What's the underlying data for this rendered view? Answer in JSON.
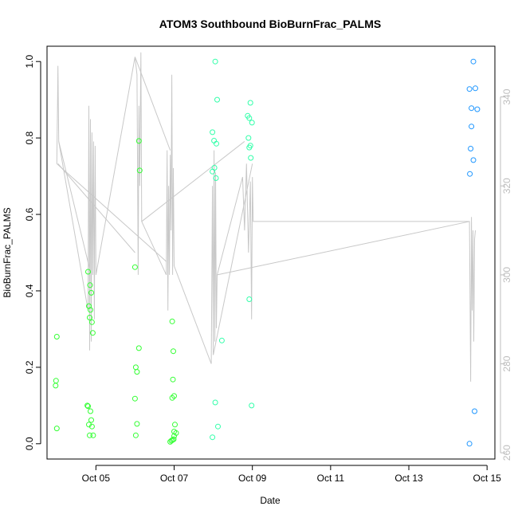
{
  "chart_data": {
    "type": "scatter",
    "title": "ATOM3 Southbound BioBurnFrac_PALMS",
    "xlabel": "Date",
    "ylabel": "BioBurnFrac_PALMS",
    "x_axis": {
      "unit": "day-of-October-2017",
      "range": [
        3.75,
        15.2
      ],
      "ticks": [
        5,
        7,
        9,
        11,
        13,
        15
      ],
      "tick_labels": [
        "Oct 05",
        "Oct 07",
        "Oct 09",
        "Oct 11",
        "Oct 13",
        "Oct 15"
      ]
    },
    "y_left": {
      "range": [
        -0.04,
        1.04
      ],
      "ticks": [
        0.0,
        0.2,
        0.4,
        0.6,
        0.8,
        1.0
      ],
      "tick_labels": [
        "0.0",
        "0.2",
        "0.4",
        "0.6",
        "0.8",
        "1.0"
      ]
    },
    "y_right": {
      "range": [
        258.6,
        351.4
      ],
      "ticks": [
        260,
        280,
        300,
        320,
        340
      ],
      "tick_labels": [
        "260",
        "280",
        "300",
        "320",
        "340"
      ],
      "color": "#bdbdbd"
    },
    "line_series": {
      "axis": "right",
      "color": "#c8c8c8",
      "points": [
        [
          4.0,
          325
        ],
        [
          4.02,
          340
        ],
        [
          4.03,
          347
        ],
        [
          4.05,
          330
        ],
        [
          4.8,
          292
        ],
        [
          4.82,
          338
        ],
        [
          4.84,
          283
        ],
        [
          4.86,
          335
        ],
        [
          4.88,
          285
        ],
        [
          4.9,
          332
        ],
        [
          4.92,
          300
        ],
        [
          4.94,
          330
        ],
        [
          4.96,
          290
        ],
        [
          4.98,
          329
        ],
        [
          5.0,
          300
        ],
        [
          6.0,
          349
        ],
        [
          6.05,
          345
        ],
        [
          6.08,
          300
        ],
        [
          6.1,
          338
        ],
        [
          6.12,
          320
        ],
        [
          6.15,
          350
        ],
        [
          6.17,
          312
        ],
        [
          6.8,
          300
        ],
        [
          6.82,
          328
        ],
        [
          6.84,
          292
        ],
        [
          6.86,
          320
        ],
        [
          6.88,
          300
        ],
        [
          6.9,
          327
        ],
        [
          6.92,
          310
        ],
        [
          6.94,
          345
        ],
        [
          6.96,
          300
        ],
        [
          6.98,
          324
        ],
        [
          7.0,
          302
        ],
        [
          7.95,
          280
        ],
        [
          7.98,
          320
        ],
        [
          8.0,
          282
        ],
        [
          8.02,
          328
        ],
        [
          8.04,
          285
        ],
        [
          8.06,
          323
        ],
        [
          8.08,
          288
        ],
        [
          8.1,
          300
        ],
        [
          8.75,
          322
        ],
        [
          8.8,
          310
        ],
        [
          8.85,
          325
        ],
        [
          8.9,
          305
        ],
        [
          8.95,
          321
        ],
        [
          8.98,
          290
        ],
        [
          9.0,
          322
        ],
        [
          9.02,
          312
        ],
        [
          14.55,
          312
        ],
        [
          14.58,
          276
        ],
        [
          14.6,
          313
        ],
        [
          14.62,
          292
        ],
        [
          14.64,
          310
        ],
        [
          14.66,
          285
        ],
        [
          14.68,
          308
        ],
        [
          14.7,
          310
        ]
      ],
      "connectors": [
        [
          [
            4.05,
            330
          ],
          [
            4.85,
            301
          ]
        ],
        [
          [
            4.03,
            325
          ],
          [
            6.0,
            305
          ]
        ],
        [
          [
            4.0,
            325
          ],
          [
            6.8,
            303
          ]
        ],
        [
          [
            6.0,
            349
          ],
          [
            6.9,
            328
          ]
        ],
        [
          [
            6.17,
            312
          ],
          [
            8.8,
            330
          ]
        ],
        [
          [
            8.1,
            300
          ],
          [
            14.55,
            312
          ]
        ],
        [
          [
            8.0,
            282
          ],
          [
            9.0,
            325
          ]
        ]
      ]
    },
    "series": [
      {
        "group": "Oct04-Oct07",
        "color": "#33ff33",
        "points": [
          [
            4.0,
            0.28
          ],
          [
            3.98,
            0.165
          ],
          [
            3.97,
            0.152
          ],
          [
            4.0,
            0.04
          ],
          [
            4.8,
            0.45
          ],
          [
            4.85,
            0.415
          ],
          [
            4.88,
            0.395
          ],
          [
            4.82,
            0.36
          ],
          [
            4.86,
            0.35
          ],
          [
            4.84,
            0.33
          ],
          [
            4.9,
            0.318
          ],
          [
            4.92,
            0.29
          ],
          [
            4.78,
            0.1
          ],
          [
            4.8,
            0.098
          ],
          [
            4.86,
            0.085
          ],
          [
            4.88,
            0.062
          ],
          [
            4.82,
            0.05
          ],
          [
            4.9,
            0.045
          ],
          [
            4.84,
            0.022
          ],
          [
            4.93,
            0.022
          ],
          [
            6.1,
            0.792
          ],
          [
            6.12,
            0.715
          ],
          [
            6.0,
            0.462
          ],
          [
            6.1,
            0.25
          ],
          [
            6.02,
            0.2
          ],
          [
            6.05,
            0.188
          ],
          [
            6.0,
            0.118
          ],
          [
            6.05,
            0.052
          ],
          [
            6.02,
            0.022
          ],
          [
            6.95,
            0.32
          ],
          [
            6.98,
            0.242
          ],
          [
            6.97,
            0.168
          ],
          [
            7.0,
            0.125
          ],
          [
            6.95,
            0.12
          ],
          [
            7.02,
            0.05
          ],
          [
            7.0,
            0.032
          ],
          [
            7.05,
            0.028
          ],
          [
            6.9,
            0.005
          ],
          [
            6.93,
            0.008
          ],
          [
            6.96,
            0.01
          ],
          [
            6.99,
            0.012
          ],
          [
            7.0,
            0.02
          ]
        ]
      },
      {
        "group": "Oct08-Oct09",
        "color": "#33ffaa",
        "points": [
          [
            8.05,
            1.0
          ],
          [
            8.1,
            0.9
          ],
          [
            7.98,
            0.815
          ],
          [
            8.02,
            0.793
          ],
          [
            8.08,
            0.785
          ],
          [
            8.03,
            0.722
          ],
          [
            7.98,
            0.712
          ],
          [
            8.07,
            0.695
          ],
          [
            8.22,
            0.27
          ],
          [
            8.05,
            0.108
          ],
          [
            8.12,
            0.045
          ],
          [
            7.98,
            0.017
          ],
          [
            8.95,
            0.892
          ],
          [
            8.88,
            0.858
          ],
          [
            8.92,
            0.852
          ],
          [
            8.99,
            0.84
          ],
          [
            8.9,
            0.8
          ],
          [
            8.95,
            0.78
          ],
          [
            8.92,
            0.775
          ],
          [
            8.96,
            0.748
          ],
          [
            8.92,
            0.378
          ],
          [
            8.98,
            0.1
          ]
        ]
      },
      {
        "group": "Oct14",
        "color": "#1e96ff",
        "points": [
          [
            14.65,
            1.0
          ],
          [
            14.7,
            0.93
          ],
          [
            14.55,
            0.928
          ],
          [
            14.6,
            0.878
          ],
          [
            14.75,
            0.875
          ],
          [
            14.6,
            0.83
          ],
          [
            14.58,
            0.772
          ],
          [
            14.65,
            0.742
          ],
          [
            14.56,
            0.706
          ],
          [
            14.68,
            0.085
          ],
          [
            14.55,
            0.0
          ]
        ]
      }
    ]
  }
}
